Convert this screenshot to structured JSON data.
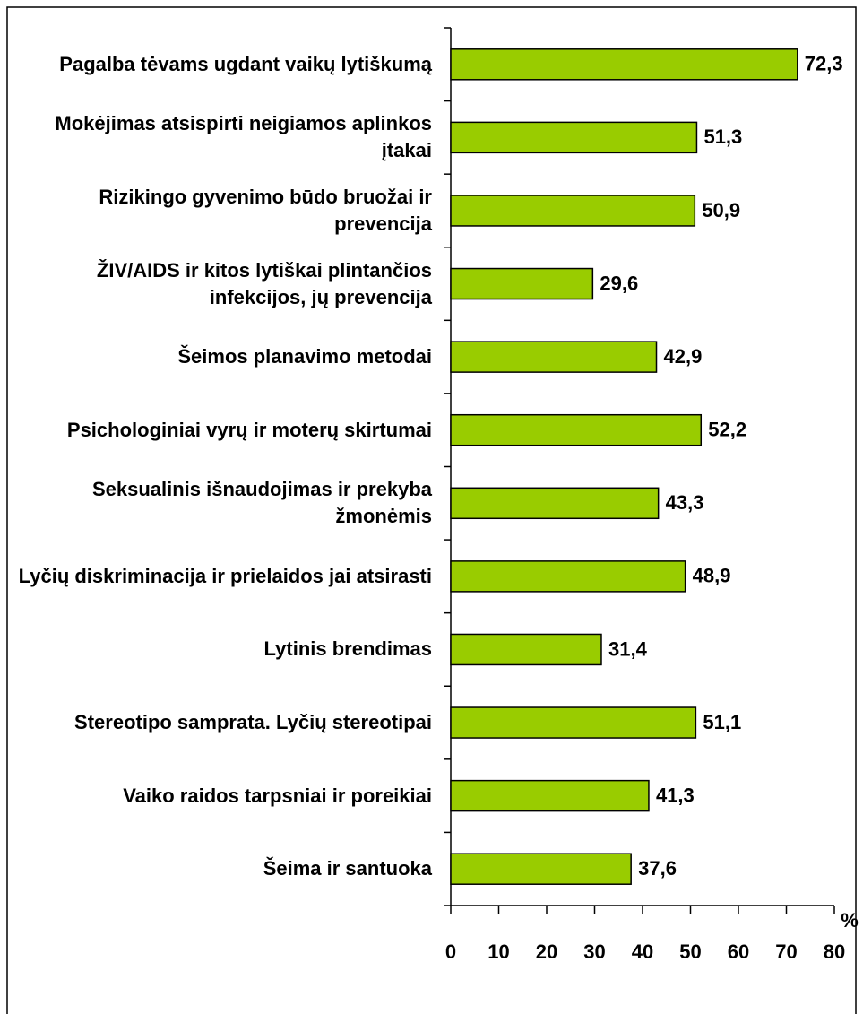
{
  "chart_data": {
    "type": "barh",
    "categories": [
      "Pagalba tėvams ugdant vaikų lytiškumą",
      "Mokėjimas atsispirti neigiamos aplinkos įtakai",
      "Rizikingo gyvenimo būdo bruožai ir prevencija",
      "ŽIV/AIDS ir kitos lytiškai plintančios infekcijos, jų prevencija",
      "Šeimos planavimo metodai",
      "Psichologiniai vyrų ir moterų skirtumai",
      "Seksualinis išnaudojimas ir prekyba žmonėmis",
      "Lyčių diskriminacija ir prielaidos jai atsirasti",
      "Lytinis brendimas",
      "Stereotipo samprata. Lyčių stereotipai",
      "Vaiko raidos tarpsniai ir poreikiai",
      "Šeima ir santuoka"
    ],
    "values": [
      72.3,
      51.3,
      50.9,
      29.6,
      42.9,
      52.2,
      43.3,
      48.9,
      31.4,
      51.1,
      41.3,
      37.6
    ],
    "value_labels": [
      "72,3",
      "51,3",
      "50,9",
      "29,6",
      "42,9",
      "52,2",
      "43,3",
      "48,9",
      "31,4",
      "51,1",
      "41,3",
      "37,6"
    ],
    "color": "#99cc00",
    "xlabel": "%",
    "xlim": [
      0,
      80
    ],
    "xticks": [
      0,
      10,
      20,
      30,
      40,
      50,
      60,
      70,
      80
    ]
  }
}
